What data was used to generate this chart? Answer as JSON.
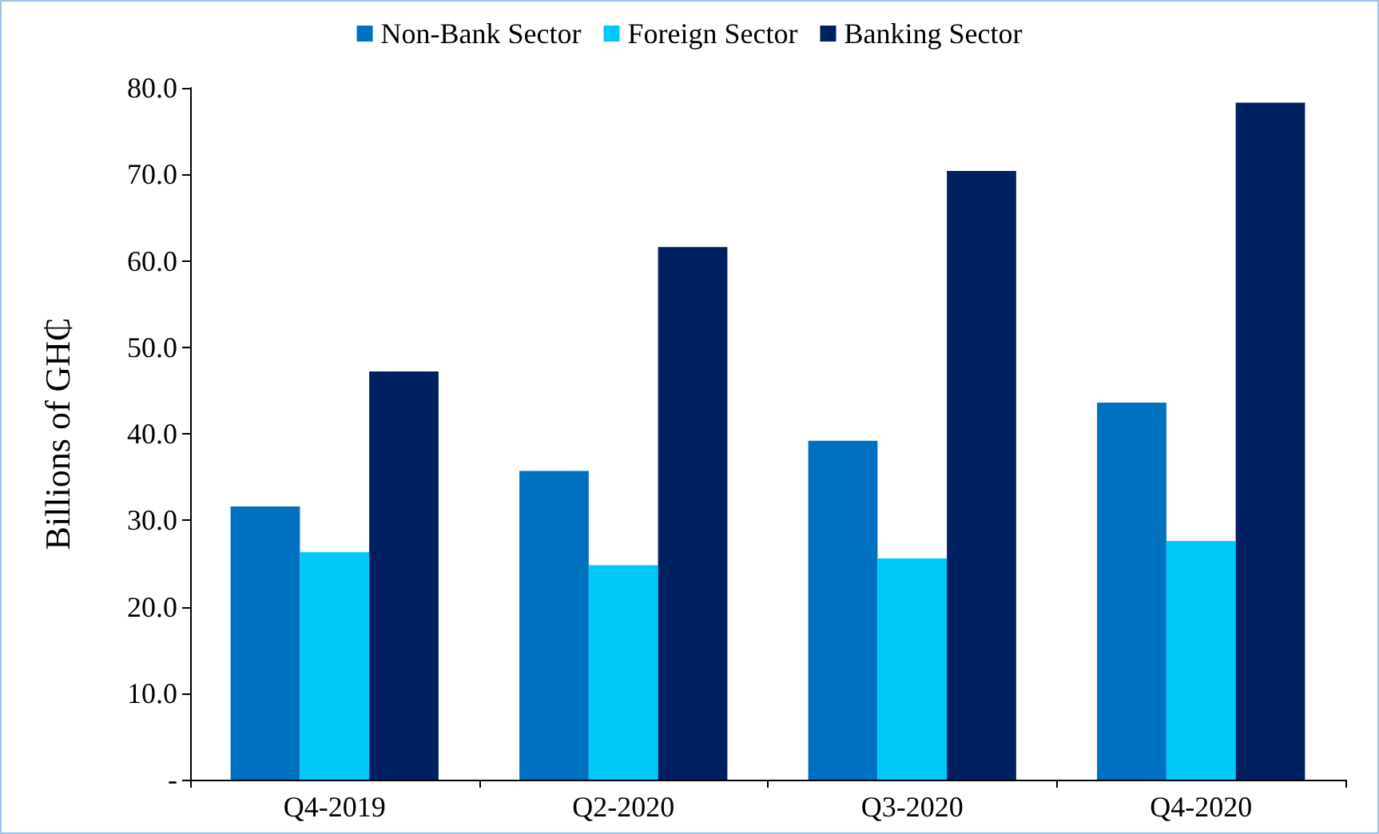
{
  "chart_data": {
    "type": "bar",
    "ylabel": "Billions of GH₵",
    "categories": [
      "Q4-2019",
      "Q2-2020",
      "Q3-2020",
      "Q4-2020"
    ],
    "series": [
      {
        "name": "Non-Bank Sector",
        "color": "#0070c0",
        "values": [
          31.6,
          35.7,
          39.2,
          43.6
        ]
      },
      {
        "name": "Foreign Sector",
        "color": "#00c8f8",
        "values": [
          26.3,
          24.8,
          25.6,
          27.6
        ]
      },
      {
        "name": "Banking Sector",
        "color": "#002060",
        "values": [
          47.2,
          61.6,
          70.4,
          78.3
        ]
      }
    ],
    "ylim": [
      0,
      80
    ],
    "yticks": [
      {
        "value": 0,
        "label": "-"
      },
      {
        "value": 10,
        "label": "10.0"
      },
      {
        "value": 20,
        "label": "20.0"
      },
      {
        "value": 30,
        "label": "30.0"
      },
      {
        "value": 40,
        "label": "40.0"
      },
      {
        "value": 50,
        "label": "50.0"
      },
      {
        "value": 60,
        "label": "60.0"
      },
      {
        "value": 70,
        "label": "70.0"
      },
      {
        "value": 80,
        "label": "80.0"
      }
    ],
    "grid": false,
    "legend": "top"
  }
}
